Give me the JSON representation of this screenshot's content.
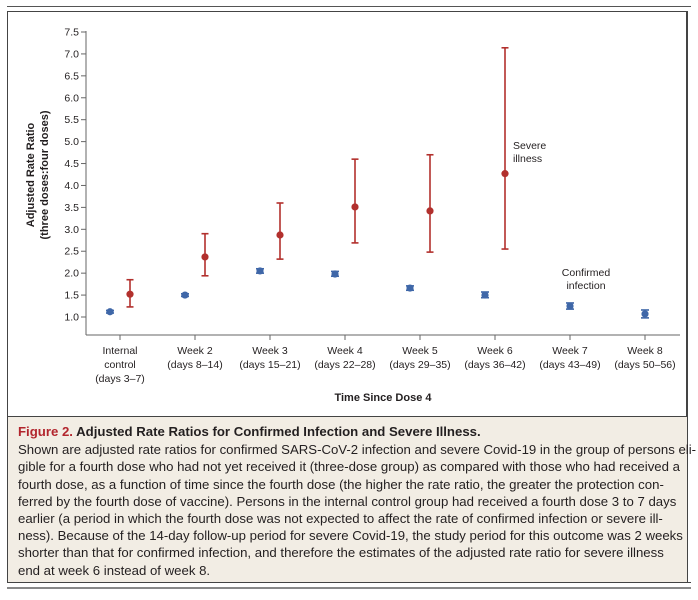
{
  "chart_data": {
    "type": "scatter",
    "subtype": "point-estimate-with-error-bars",
    "xlabel": "Time Since Dose 4",
    "ylabel": [
      "Adjusted Rate Ratio",
      "(three doses:four doses)"
    ],
    "ylim": [
      0.6,
      7.5
    ],
    "yticks": [
      1.0,
      1.5,
      2.0,
      2.5,
      3.0,
      3.5,
      4.0,
      4.5,
      5.0,
      5.5,
      6.0,
      6.5,
      7.0,
      7.5
    ],
    "ytick_labels": [
      "1.0",
      "1.5",
      "2.0",
      "2.5",
      "3.0",
      "3.5",
      "4.0",
      "4.5",
      "5.0",
      "5.5",
      "6.0",
      "6.5",
      "7.0",
      "7.5"
    ],
    "grid": false,
    "categories": [
      [
        "Internal",
        "control",
        "(days 3–7)"
      ],
      [
        "Week 2",
        "(days 8–14)"
      ],
      [
        "Week 3",
        "(days 15–21)"
      ],
      [
        "Week 4",
        "(days 22–28)"
      ],
      [
        "Week 5",
        "(days 29–35)"
      ],
      [
        "Week 6",
        "(days 36–42)"
      ],
      [
        "Week 7",
        "(days 43–49)"
      ],
      [
        "Week 8",
        "(days 50–56)"
      ]
    ],
    "series": [
      {
        "name": "Confirmed infection",
        "color": "#3f67a8",
        "values": [
          1.12,
          1.5,
          2.05,
          1.98,
          1.66,
          1.5,
          1.25,
          1.07
        ],
        "ci_low": [
          1.09,
          1.47,
          2.0,
          1.93,
          1.61,
          1.44,
          1.18,
          0.98
        ],
        "ci_high": [
          1.15,
          1.53,
          2.1,
          2.04,
          1.71,
          1.57,
          1.32,
          1.16
        ],
        "annotation": [
          "Confirmed",
          "infection"
        ],
        "annotation_location": "near week 7"
      },
      {
        "name": "Severe illness",
        "color": "#b2302d",
        "values": [
          1.52,
          2.37,
          2.87,
          3.51,
          3.42,
          4.27,
          null,
          null
        ],
        "ci_low": [
          1.23,
          1.94,
          2.32,
          2.69,
          2.48,
          2.55,
          null,
          null
        ],
        "ci_high": [
          1.85,
          2.9,
          3.6,
          4.6,
          4.7,
          7.14,
          null,
          null
        ],
        "annotation": [
          "Severe",
          "illness"
        ],
        "annotation_location": "right of week 6"
      }
    ]
  },
  "caption": {
    "figure_label": "Figure 2.",
    "title": "Adjusted Rate Ratios for Confirmed Infection and Severe Illness.",
    "lines": [
      "Shown are adjusted rate ratios for confirmed SARS-CoV-2 infection and severe Covid-19 in the group of persons eli-",
      "gible for a fourth dose who had not yet received it (three-dose group) as compared with those who had received a",
      "fourth dose, as a function of time since the fourth dose (the higher the rate ratio, the greater the protection con-",
      "ferred by the fourth dose of vaccine). Persons in the internal control group had received a fourth dose 3 to 7 days",
      "earlier (a period in which the fourth dose was not expected to affect the rate of confirmed infection or severe ill-",
      "ness). Because of the 14-day follow-up period for severe Covid-19, the study period for this outcome was 2 weeks",
      "shorter than that for confirmed infection, and therefore the estimates of the adjusted rate ratio for severe illness",
      "end at week 6 instead of week 8."
    ]
  }
}
